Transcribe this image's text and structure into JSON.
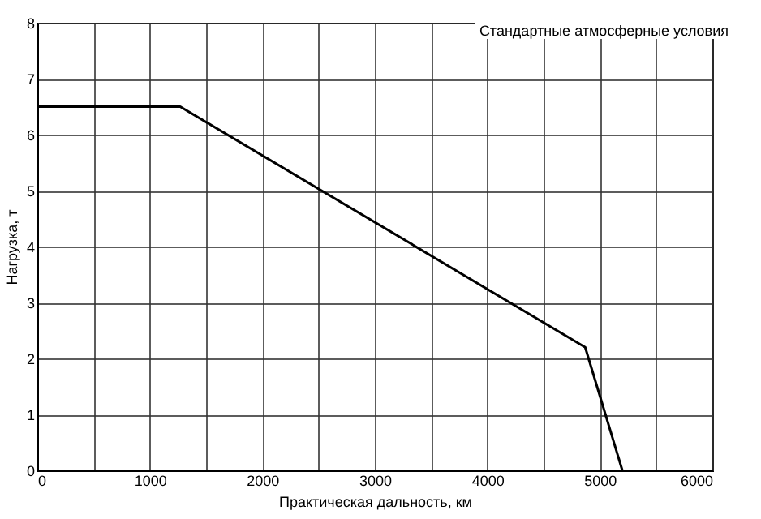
{
  "chart_data": {
    "type": "line",
    "xlabel": "Практическая дальность, км",
    "ylabel": "Нагрузка, т",
    "annotations": [
      "Стандартные атмосферные условия"
    ],
    "x": [
      0,
      1270,
      4870,
      5200
    ],
    "series": [
      {
        "color": "#000000",
        "values": [
          6.5,
          6.5,
          2.2,
          0
        ]
      }
    ],
    "xlim": [
      0,
      6000
    ],
    "ylim": [
      0,
      8
    ],
    "xticks": [
      0,
      {
        "value": 500,
        "label": null
      },
      1000,
      {
        "value": 1500,
        "label": null
      },
      2000,
      {
        "value": 2500,
        "label": null
      },
      3000,
      {
        "value": 3500,
        "label": null
      },
      4000,
      {
        "value": 4500,
        "label": null
      },
      5000,
      {
        "value": 5500,
        "label": null
      },
      6000
    ],
    "yticks": [
      0,
      1,
      2,
      3,
      4,
      5,
      6,
      7,
      8
    ],
    "grid": true,
    "marker": "none",
    "line_style": "solid"
  }
}
